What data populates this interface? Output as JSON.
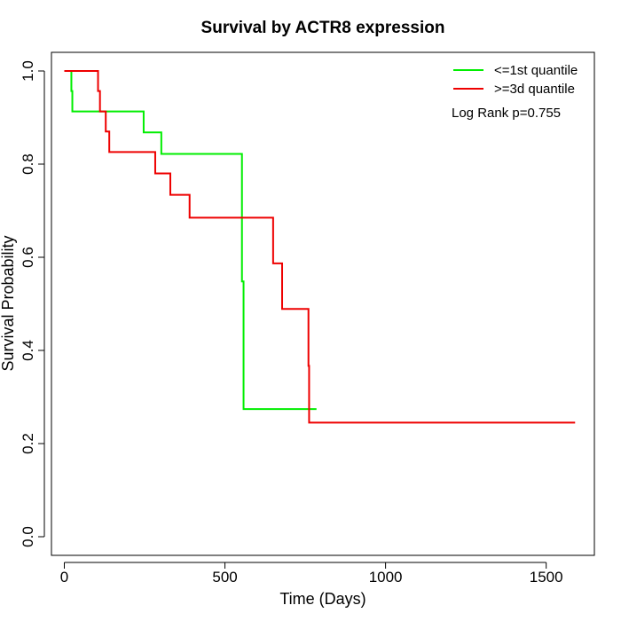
{
  "chart_data": {
    "type": "line",
    "title": "Survival by ACTR8 expression",
    "xlabel": "Time (Days)",
    "ylabel": "Survival Probability",
    "xlim": [
      -40,
      1650
    ],
    "ylim": [
      -0.04,
      1.04
    ],
    "xticks": [
      0,
      500,
      1000,
      1500
    ],
    "xtick_labels": [
      "0",
      "500",
      "1000",
      "1500"
    ],
    "yticks": [
      0.0,
      0.2,
      0.4,
      0.6,
      0.8,
      1.0
    ],
    "ytick_labels": [
      "0.0",
      "0.2",
      "0.4",
      "0.6",
      "0.8",
      "1.0"
    ],
    "grid": false,
    "legend_position": "top-right",
    "annotation": "Log Rank p=0.755",
    "series": [
      {
        "name": "<=1st quantile",
        "color": "#00ee00",
        "x": [
          0,
          22,
          22,
          25,
          25,
          247,
          247,
          302,
          302,
          553,
          553,
          558,
          558,
          785
        ],
        "y": [
          1.0,
          1.0,
          0.957,
          0.957,
          0.913,
          0.913,
          0.868,
          0.868,
          0.822,
          0.822,
          0.548,
          0.548,
          0.274,
          0.274
        ]
      },
      {
        "name": ">=3d quantile",
        "color": "#ee0000",
        "x": [
          0,
          105,
          105,
          111,
          111,
          129,
          129,
          140,
          140,
          283,
          283,
          330,
          330,
          390,
          390,
          650,
          650,
          678,
          678,
          760,
          760,
          762,
          762,
          1590
        ],
        "y": [
          1.0,
          1.0,
          0.957,
          0.957,
          0.913,
          0.913,
          0.87,
          0.87,
          0.826,
          0.826,
          0.78,
          0.78,
          0.734,
          0.734,
          0.685,
          0.685,
          0.587,
          0.587,
          0.489,
          0.489,
          0.367,
          0.367,
          0.245,
          0.245
        ]
      }
    ]
  }
}
